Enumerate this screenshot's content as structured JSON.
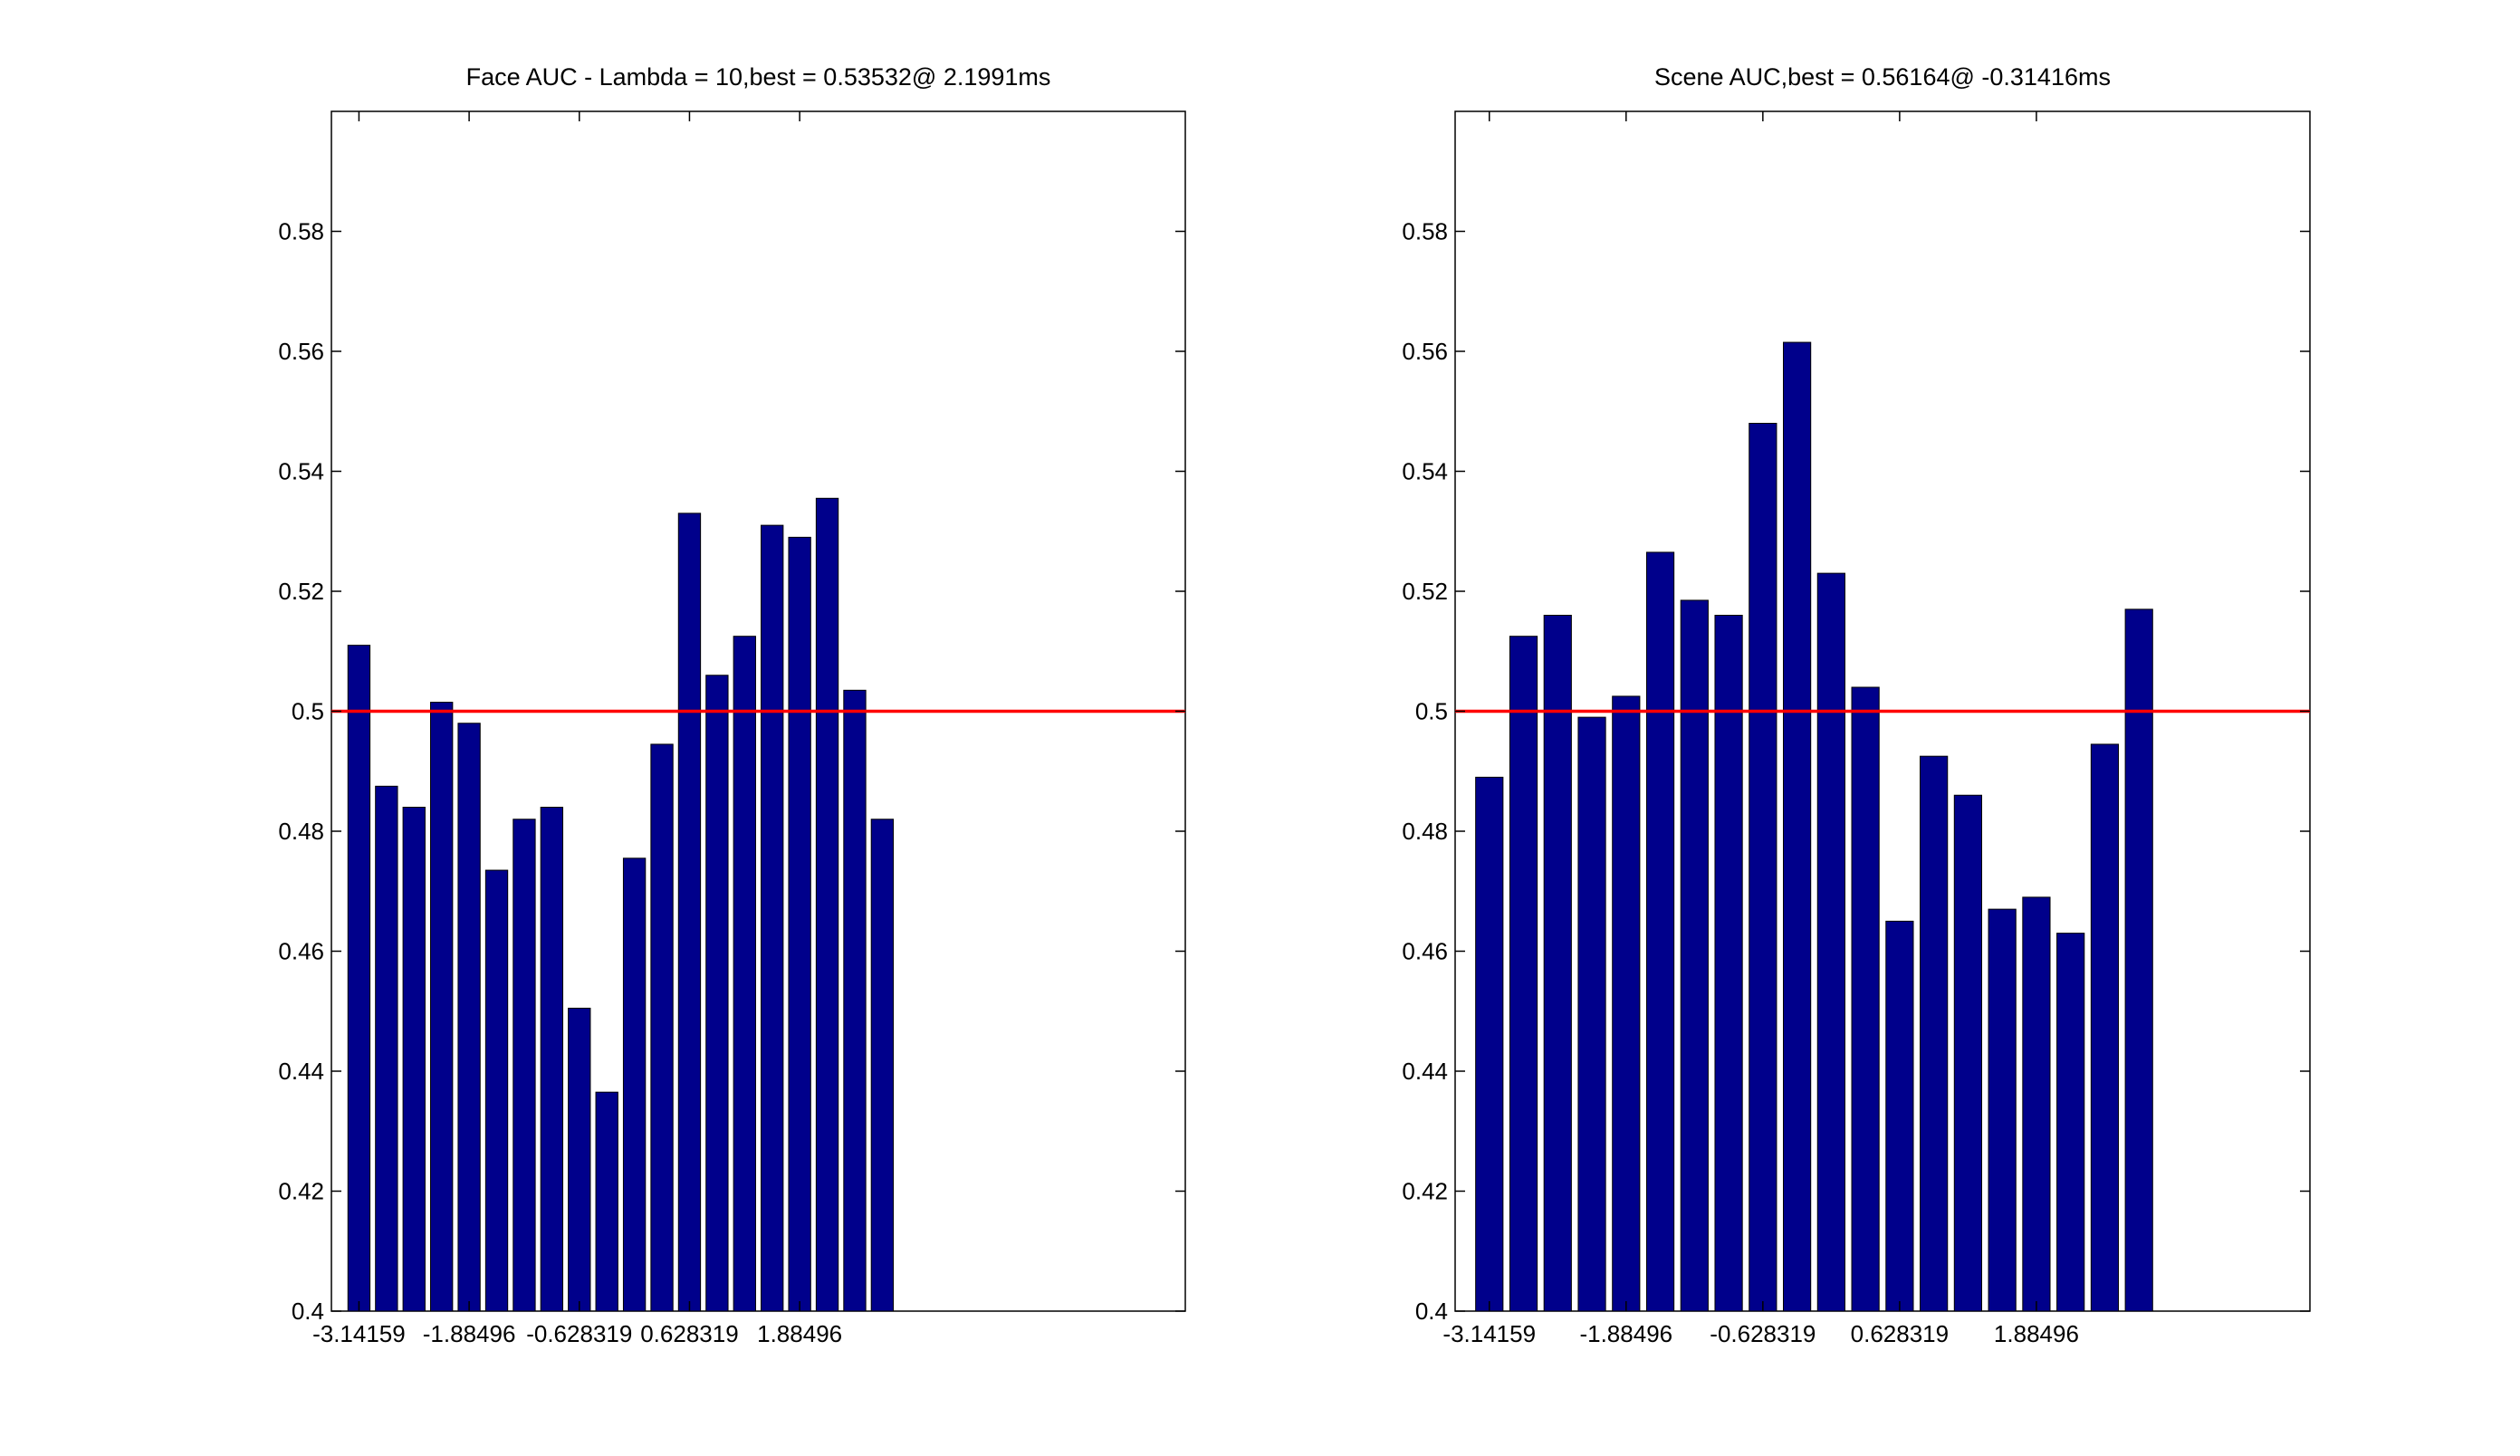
{
  "chart_data": [
    {
      "type": "bar",
      "title": "Face AUC - Lambda = 10,best = 0.53532@ 2.1991ms",
      "xlabel": "",
      "ylabel": "",
      "ylim": [
        0.4,
        0.6
      ],
      "yticks": [
        0.4,
        0.42,
        0.44,
        0.46,
        0.48,
        0.5,
        0.52,
        0.54,
        0.56,
        0.58
      ],
      "ytick_labels": [
        "0.4",
        "0.42",
        "0.44",
        "0.46",
        "0.48",
        "0.5",
        "0.52",
        "0.54",
        "0.56",
        "0.58"
      ],
      "xtick_labels": [
        "-3.14159",
        "-1.88496",
        "-0.628319",
        "0.628319",
        "1.88496"
      ],
      "xtick_positions": [
        1,
        5,
        9,
        13,
        17
      ],
      "xlim": [
        0,
        31
      ],
      "values": [
        0.511,
        0.4875,
        0.484,
        0.5015,
        0.498,
        0.4735,
        0.482,
        0.484,
        0.4505,
        0.4365,
        0.4755,
        0.4945,
        0.533,
        0.506,
        0.5125,
        0.531,
        0.529,
        0.5355,
        0.5035,
        0.482
      ],
      "reference_line": 0.5,
      "bar_color": "#00008b",
      "line_color": "#ff0000",
      "grid": false
    },
    {
      "type": "bar",
      "title": "Scene AUC,best = 0.56164@ -0.31416ms",
      "xlabel": "",
      "ylabel": "",
      "ylim": [
        0.4,
        0.6
      ],
      "yticks": [
        0.4,
        0.42,
        0.44,
        0.46,
        0.48,
        0.5,
        0.52,
        0.54,
        0.56,
        0.58
      ],
      "ytick_labels": [
        "0.4",
        "0.42",
        "0.44",
        "0.46",
        "0.48",
        "0.5",
        "0.52",
        "0.54",
        "0.56",
        "0.58"
      ],
      "xtick_labels": [
        "-3.14159",
        "-1.88496",
        "-0.628319",
        "0.628319",
        "1.88496"
      ],
      "xtick_positions": [
        1,
        5,
        9,
        13,
        17
      ],
      "xlim": [
        0,
        25
      ],
      "values": [
        0.489,
        0.5125,
        0.516,
        0.499,
        0.5025,
        0.5265,
        0.5185,
        0.516,
        0.548,
        0.5615,
        0.523,
        0.504,
        0.465,
        0.4925,
        0.486,
        0.467,
        0.469,
        0.463,
        0.4945,
        0.517
      ],
      "reference_line": 0.5,
      "bar_color": "#00008b",
      "line_color": "#ff0000",
      "grid": false
    }
  ]
}
